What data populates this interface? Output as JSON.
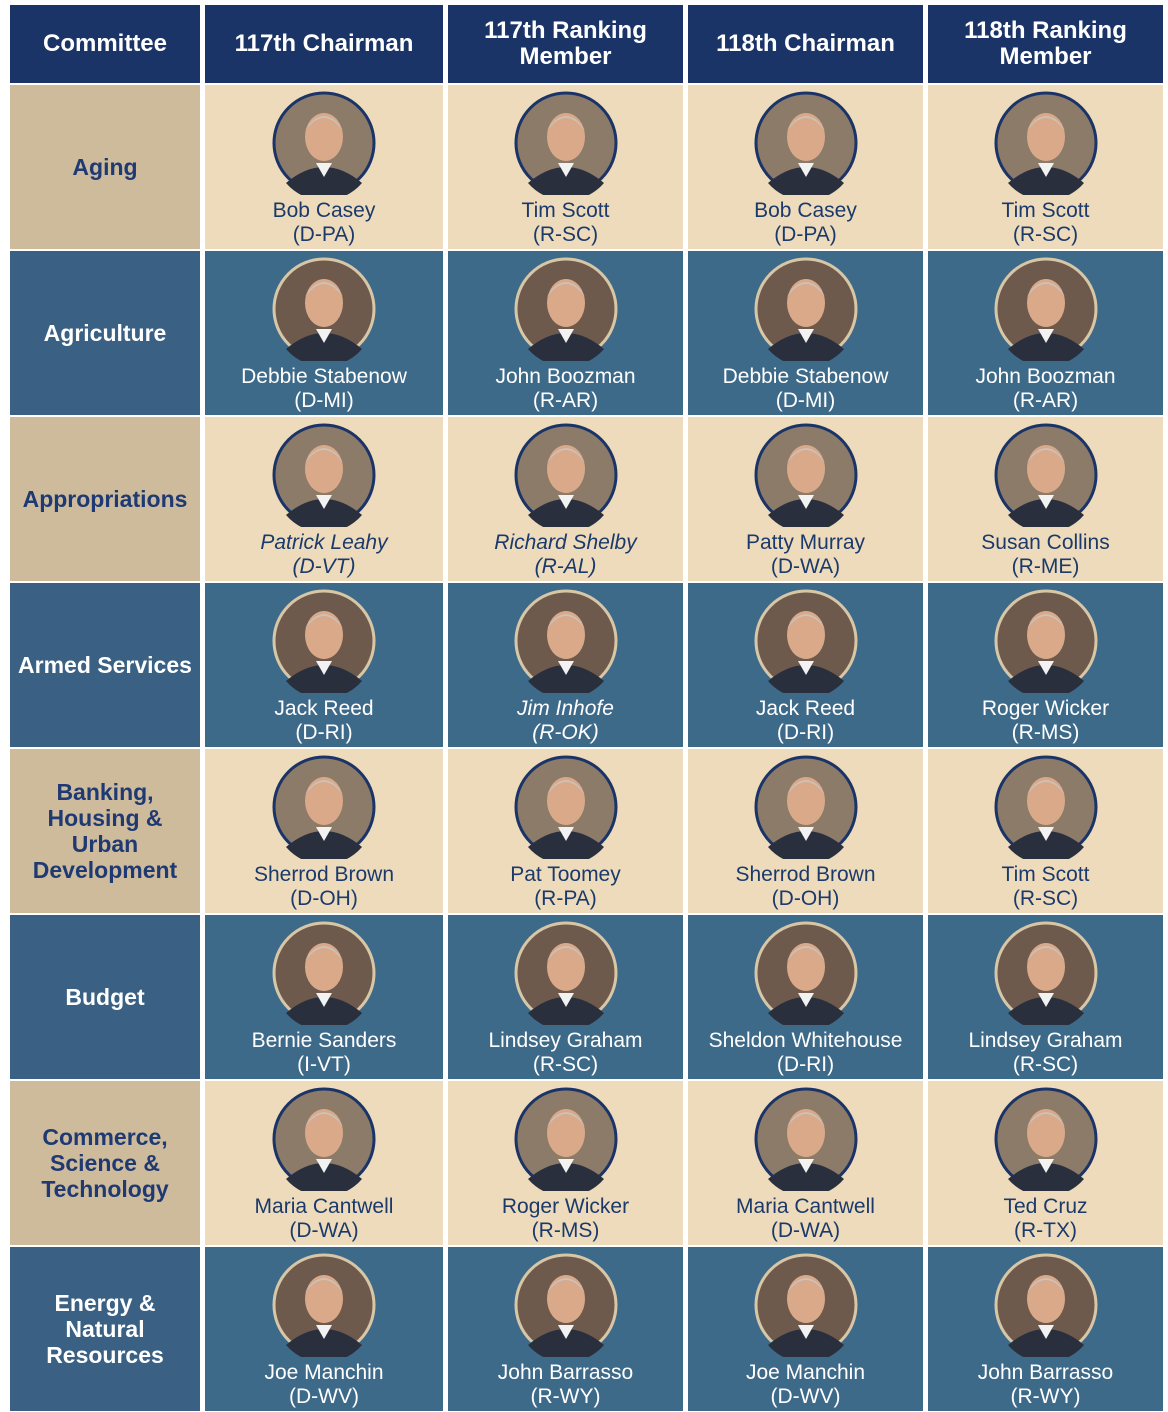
{
  "table": {
    "header": [
      "Committee",
      "117th Chairman",
      "117th Ranking Member",
      "118th Chairman",
      "118th Ranking Member"
    ],
    "rows": [
      {
        "committee": "Aging",
        "cells": [
          {
            "name": "Bob Casey",
            "party": "(D-PA)"
          },
          {
            "name": "Tim Scott",
            "party": "(R-SC)"
          },
          {
            "name": "Bob Casey",
            "party": "(D-PA)"
          },
          {
            "name": "Tim Scott",
            "party": "(R-SC)"
          }
        ]
      },
      {
        "committee": "Agriculture",
        "cells": [
          {
            "name": "Debbie Stabenow",
            "party": "(D-MI)"
          },
          {
            "name": "John Boozman",
            "party": "(R-AR)"
          },
          {
            "name": "Debbie Stabenow",
            "party": "(D-MI)"
          },
          {
            "name": "John Boozman",
            "party": "(R-AR)"
          }
        ]
      },
      {
        "committee": "Appropriations",
        "cells": [
          {
            "name": "Patrick Leahy",
            "party": "(D-VT)",
            "italic": true
          },
          {
            "name": "Richard Shelby",
            "party": "(R-AL)",
            "italic": true
          },
          {
            "name": "Patty Murray",
            "party": "(D-WA)"
          },
          {
            "name": "Susan Collins",
            "party": "(R-ME)"
          }
        ]
      },
      {
        "committee": "Armed Services",
        "cells": [
          {
            "name": "Jack Reed",
            "party": "(D-RI)"
          },
          {
            "name": "Jim Inhofe",
            "party": "(R-OK)",
            "italic": true
          },
          {
            "name": "Jack Reed",
            "party": "(D-RI)"
          },
          {
            "name": "Roger Wicker",
            "party": "(R-MS)"
          }
        ]
      },
      {
        "committee": "Banking, Housing & Urban Development",
        "cells": [
          {
            "name": "Sherrod Brown",
            "party": "(D-OH)"
          },
          {
            "name": "Pat Toomey",
            "party": "(R-PA)"
          },
          {
            "name": "Sherrod Brown",
            "party": "(D-OH)"
          },
          {
            "name": "Tim Scott",
            "party": "(R-SC)"
          }
        ]
      },
      {
        "committee": "Budget",
        "cells": [
          {
            "name": "Bernie Sanders",
            "party": "(I-VT)"
          },
          {
            "name": "Lindsey Graham",
            "party": "(R-SC)"
          },
          {
            "name": "Sheldon Whitehouse",
            "party": "(D-RI)"
          },
          {
            "name": "Lindsey Graham",
            "party": "(R-SC)"
          }
        ]
      },
      {
        "committee": "Commerce, Science & Technology",
        "cells": [
          {
            "name": "Maria Cantwell",
            "party": "(D-WA)"
          },
          {
            "name": "Roger Wicker",
            "party": "(R-MS)"
          },
          {
            "name": "Maria Cantwell",
            "party": "(D-WA)"
          },
          {
            "name": "Ted Cruz",
            "party": "(R-TX)"
          }
        ]
      },
      {
        "committee": "Energy & Natural Resources",
        "cells": [
          {
            "name": "Joe Manchin",
            "party": "(D-WV)"
          },
          {
            "name": "John Barrasso",
            "party": "(R-WY)"
          },
          {
            "name": "Joe Manchin",
            "party": "(D-WV)"
          },
          {
            "name": "John Barrasso",
            "party": "(R-WY)"
          }
        ]
      }
    ]
  }
}
